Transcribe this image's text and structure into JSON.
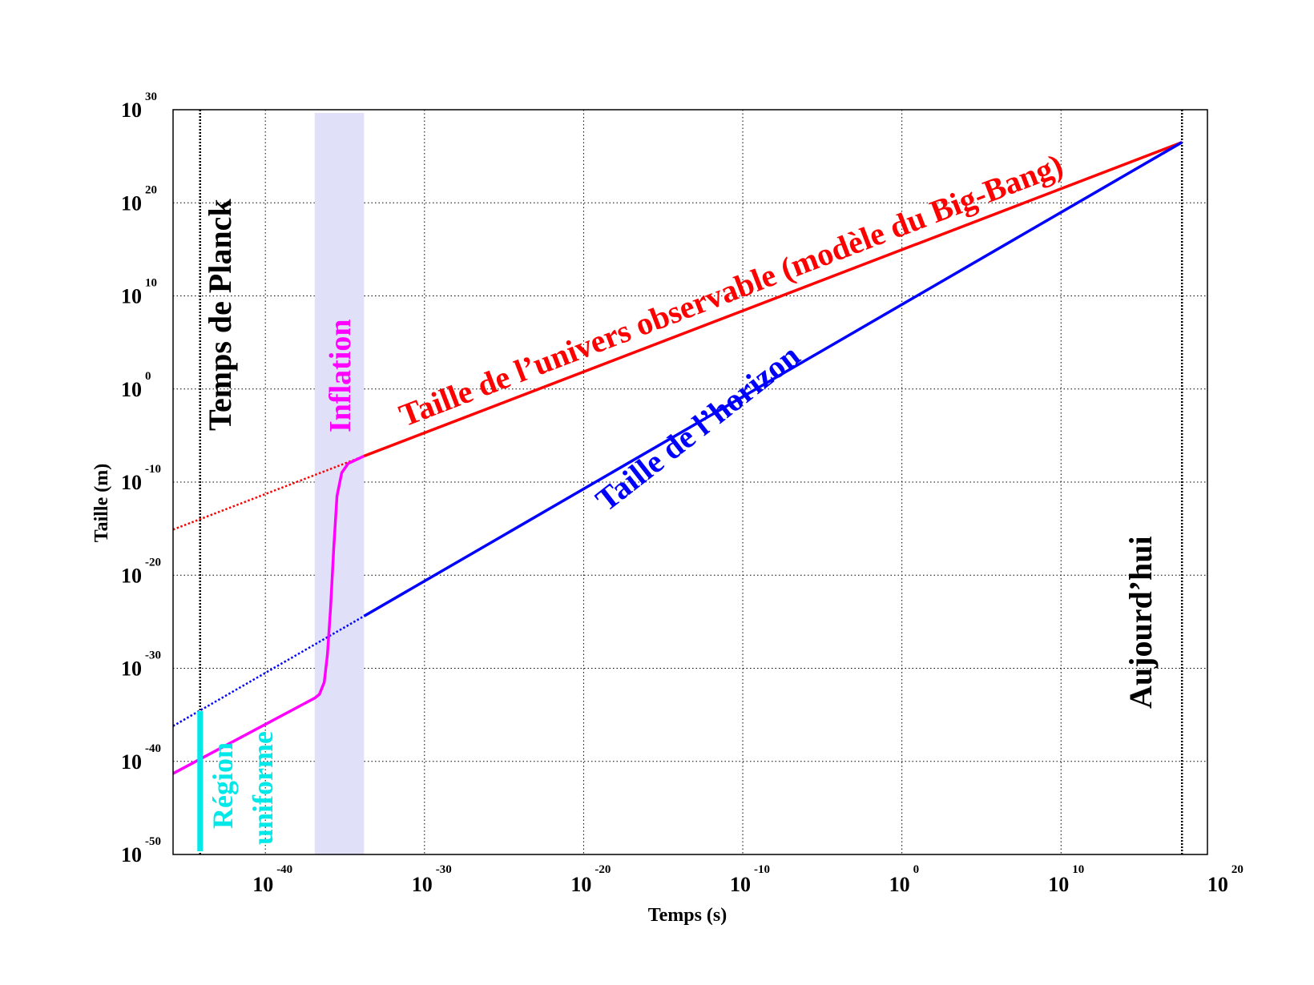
{
  "chart_data": {
    "type": "line",
    "xlabel": "Temps (s)",
    "ylabel": "Taille (m)",
    "x_scale": "log",
    "y_scale": "log",
    "xlim_exp": [
      -45.8,
      19.2
    ],
    "ylim_exp": [
      -50,
      30
    ],
    "x_ticks": [
      {
        "base": "10",
        "exp": "-40",
        "value": -40
      },
      {
        "base": "10",
        "exp": "-30",
        "value": -30
      },
      {
        "base": "10",
        "exp": "-20",
        "value": -20
      },
      {
        "base": "10",
        "exp": "-10",
        "value": -10
      },
      {
        "base": "10",
        "exp": "0",
        "value": 0
      },
      {
        "base": "10",
        "exp": "10",
        "value": 10
      },
      {
        "base": "10",
        "exp": "20",
        "value": 20
      }
    ],
    "y_ticks": [
      {
        "base": "10",
        "exp": "30",
        "value": 30
      },
      {
        "base": "10",
        "exp": "20",
        "value": 20
      },
      {
        "base": "10",
        "exp": "10",
        "value": 10
      },
      {
        "base": "10",
        "exp": "0",
        "value": 0
      },
      {
        "base": "10",
        "exp": "-10",
        "value": -10
      },
      {
        "base": "10",
        "exp": "-20",
        "value": -20
      },
      {
        "base": "10",
        "exp": "-30",
        "value": -30
      },
      {
        "base": "10",
        "exp": "-40",
        "value": -40
      },
      {
        "base": "10",
        "exp": "-50",
        "value": -50
      }
    ],
    "grid": true,
    "series": [
      {
        "name": "Taille de l’univers observable (modèle du Big-Bang)",
        "color": "#ff0000",
        "solid": [
          [
            -33.8,
            -7.2
          ],
          [
            17.6,
            26.5
          ]
        ],
        "dotted": [
          [
            -45.8,
            -15.1
          ],
          [
            -33.8,
            -7.2
          ]
        ]
      },
      {
        "name": "Taille de l’horizon",
        "color": "#0000ff",
        "solid": [
          [
            -33.8,
            -24.4
          ],
          [
            17.6,
            26.5
          ]
        ],
        "dotted": [
          [
            -45.8,
            -36.2
          ],
          [
            -33.8,
            -24.4
          ]
        ]
      },
      {
        "name": "Inflation",
        "color": "#ff00ff",
        "points": [
          [
            -45.8,
            -41.3
          ],
          [
            -36.9,
            -33.2
          ],
          [
            -36.6,
            -32.8
          ],
          [
            -36.3,
            -31.5
          ],
          [
            -36.1,
            -28.5
          ],
          [
            -35.9,
            -23.5
          ],
          [
            -35.7,
            -17
          ],
          [
            -35.5,
            -11.5
          ],
          [
            -35.2,
            -9
          ],
          [
            -34.8,
            -8
          ],
          [
            -33.8,
            -7.2
          ]
        ]
      }
    ],
    "bands": [
      {
        "name": "Inflation",
        "x_range": [
          -36.9,
          -33.8
        ],
        "color": "#e0e0f8"
      }
    ],
    "vertical_lines": [
      {
        "name": "Temps de Planck",
        "x": -44.1,
        "style": "dotted",
        "color": "#000000"
      },
      {
        "name": "Aujourd’hui",
        "x": 17.6,
        "style": "dotted",
        "color": "#000000"
      }
    ],
    "region": {
      "name": "Région uniforme",
      "x": -44.1,
      "y_range": [
        -50,
        -34.6
      ],
      "color": "#00e8e8"
    },
    "annotations": {
      "red_label": "Taille de l’univers observable (modèle du Big-Bang)",
      "blue_label": "Taille de l’horizon",
      "inflation_label": "Inflation",
      "planck_label": "Temps de Planck",
      "today_label": "Aujourd’hui",
      "region_line1": "Région",
      "region_line2": "uniforme"
    },
    "colors": {
      "red": "#ff0000",
      "blue": "#0000ff",
      "magenta": "#ff00ff",
      "cyan": "#00e8e8",
      "band": "#e0e0f8"
    }
  }
}
